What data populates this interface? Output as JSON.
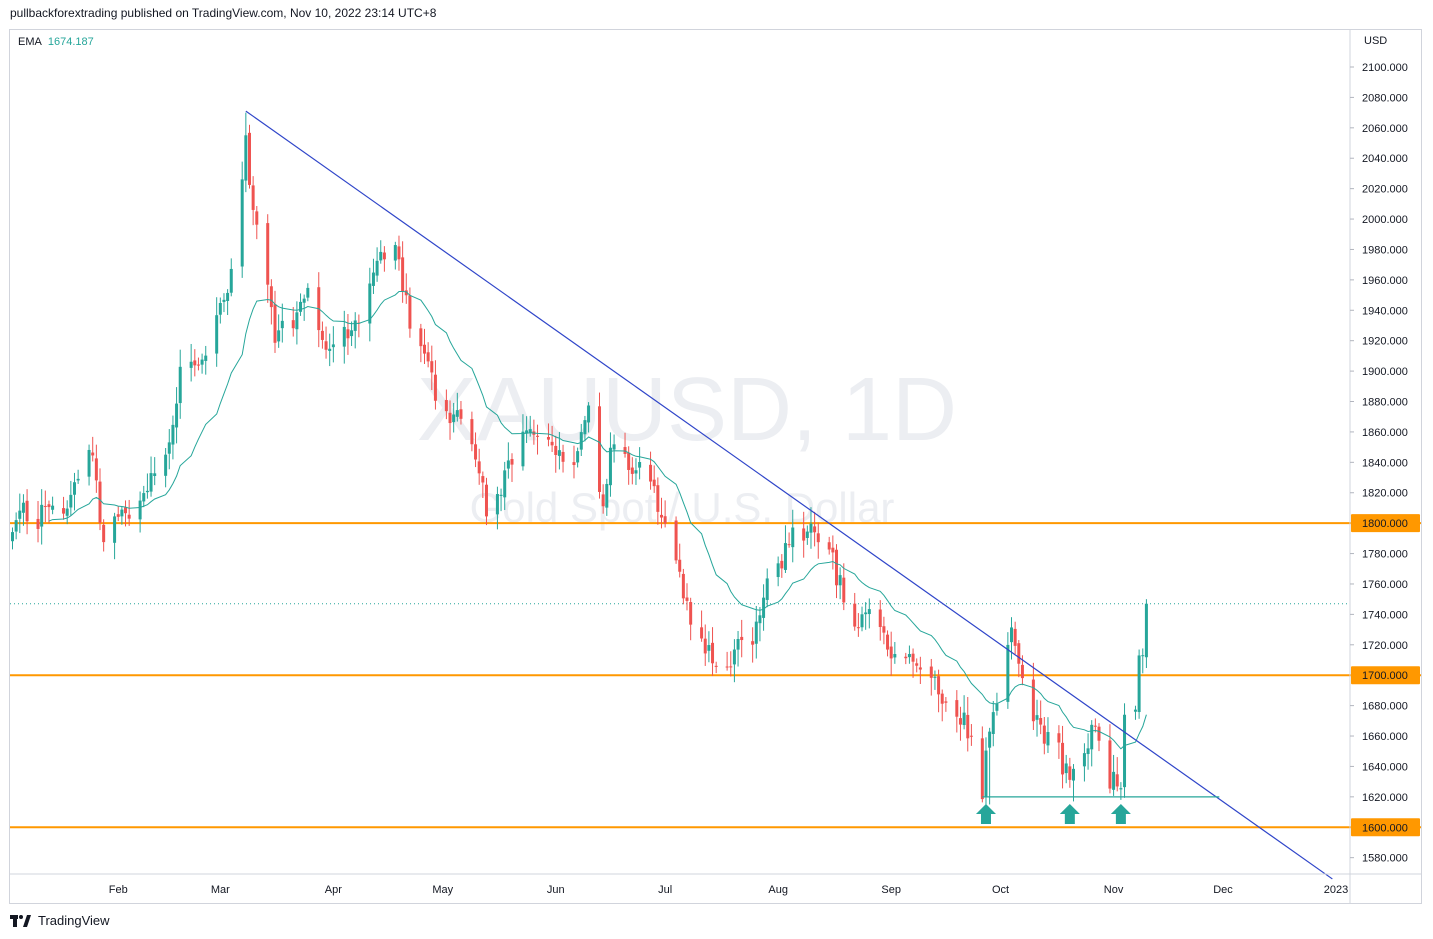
{
  "header": {
    "published": "pullbackforextrading published on TradingView.com, Nov 10, 2022 23:14 UTC+8"
  },
  "footer": {
    "brand": "TradingView"
  },
  "legend": {
    "ema_label": "EMA",
    "ema_value": "1674.187"
  },
  "colors": {
    "up": "#26a69a",
    "down": "#ef5350",
    "ema": "#26a69a",
    "trendline": "#2f45c9",
    "level": "#ff9800",
    "support": "#26a69a",
    "watermark": "#e6e8ec"
  },
  "chart_data": {
    "type": "candlestick",
    "title": "XAUUSD, 1D",
    "subtitle": "Gold Spot / U.S. Dollar",
    "currency": "USD",
    "ylim": [
      1570,
      2112
    ],
    "y_ticks": [
      1580,
      1600,
      1620,
      1640,
      1660,
      1680,
      1700,
      1720,
      1740,
      1760,
      1780,
      1800,
      1820,
      1840,
      1860,
      1880,
      1900,
      1920,
      1940,
      1960,
      1980,
      2000,
      2020,
      2040,
      2060,
      2080,
      2100
    ],
    "x_ticks": [
      "Feb",
      "Mar",
      "Apr",
      "May",
      "Jun",
      "Jul",
      "Aug",
      "Sep",
      "Oct",
      "Nov",
      "Dec",
      "2023"
    ],
    "levels": [
      {
        "value": 1800,
        "label": "1800.000"
      },
      {
        "value": 1700,
        "label": "1700.000"
      },
      {
        "value": 1600,
        "label": "1600.000"
      }
    ],
    "last_price": 1747,
    "anchors": [
      {
        "date": "2022-01-03",
        "close": 1800
      },
      {
        "date": "2022-01-05",
        "close": 1810
      },
      {
        "date": "2022-01-10",
        "close": 1800
      },
      {
        "date": "2022-01-14",
        "close": 1818
      },
      {
        "date": "2022-01-18",
        "close": 1812
      },
      {
        "date": "2022-01-25",
        "close": 1848
      },
      {
        "date": "2022-01-27",
        "close": 1795
      },
      {
        "date": "2022-01-31",
        "close": 1797
      },
      {
        "date": "2022-02-04",
        "close": 1808
      },
      {
        "date": "2022-02-10",
        "close": 1828
      },
      {
        "date": "2022-02-15",
        "close": 1855
      },
      {
        "date": "2022-02-18",
        "close": 1898
      },
      {
        "date": "2022-02-24",
        "close": 1905
      },
      {
        "date": "2022-03-01",
        "close": 1940
      },
      {
        "date": "2022-03-04",
        "close": 1968
      },
      {
        "date": "2022-03-08",
        "close": 2052
      },
      {
        "date": "2022-03-10",
        "close": 2000
      },
      {
        "date": "2022-03-14",
        "close": 1955
      },
      {
        "date": "2022-03-16",
        "close": 1925
      },
      {
        "date": "2022-03-21",
        "close": 1935
      },
      {
        "date": "2022-03-24",
        "close": 1955
      },
      {
        "date": "2022-03-29",
        "close": 1915
      },
      {
        "date": "2022-04-01",
        "close": 1925
      },
      {
        "date": "2022-04-06",
        "close": 1928
      },
      {
        "date": "2022-04-11",
        "close": 1955
      },
      {
        "date": "2022-04-14",
        "close": 1975
      },
      {
        "date": "2022-04-18",
        "close": 1980
      },
      {
        "date": "2022-04-20",
        "close": 1955
      },
      {
        "date": "2022-04-22",
        "close": 1930
      },
      {
        "date": "2022-04-26",
        "close": 1905
      },
      {
        "date": "2022-05-02",
        "close": 1868
      },
      {
        "date": "2022-05-05",
        "close": 1880
      },
      {
        "date": "2022-05-09",
        "close": 1855
      },
      {
        "date": "2022-05-13",
        "close": 1812
      },
      {
        "date": "2022-05-16",
        "close": 1818
      },
      {
        "date": "2022-05-20",
        "close": 1845
      },
      {
        "date": "2022-05-24",
        "close": 1865
      },
      {
        "date": "2022-05-31",
        "close": 1850
      },
      {
        "date": "2022-06-06",
        "close": 1845
      },
      {
        "date": "2022-06-10",
        "close": 1870
      },
      {
        "date": "2022-06-14",
        "close": 1812
      },
      {
        "date": "2022-06-16",
        "close": 1850
      },
      {
        "date": "2022-06-22",
        "close": 1840
      },
      {
        "date": "2022-06-28",
        "close": 1820
      },
      {
        "date": "2022-06-30",
        "close": 1808
      },
      {
        "date": "2022-07-05",
        "close": 1765
      },
      {
        "date": "2022-07-08",
        "close": 1740
      },
      {
        "date": "2022-07-14",
        "close": 1708
      },
      {
        "date": "2022-07-18",
        "close": 1710
      },
      {
        "date": "2022-07-21",
        "close": 1718
      },
      {
        "date": "2022-07-25",
        "close": 1720
      },
      {
        "date": "2022-07-28",
        "close": 1755
      },
      {
        "date": "2022-08-01",
        "close": 1772
      },
      {
        "date": "2022-08-04",
        "close": 1790
      },
      {
        "date": "2022-08-10",
        "close": 1793
      },
      {
        "date": "2022-08-15",
        "close": 1780
      },
      {
        "date": "2022-08-18",
        "close": 1760
      },
      {
        "date": "2022-08-22",
        "close": 1735
      },
      {
        "date": "2022-08-26",
        "close": 1738
      },
      {
        "date": "2022-08-30",
        "close": 1725
      },
      {
        "date": "2022-09-02",
        "close": 1712
      },
      {
        "date": "2022-09-07",
        "close": 1716
      },
      {
        "date": "2022-09-13",
        "close": 1700
      },
      {
        "date": "2022-09-16",
        "close": 1675
      },
      {
        "date": "2022-09-21",
        "close": 1672
      },
      {
        "date": "2022-09-26",
        "close": 1625
      },
      {
        "date": "2022-09-28",
        "close": 1660
      },
      {
        "date": "2022-10-04",
        "close": 1725
      },
      {
        "date": "2022-10-07",
        "close": 1695
      },
      {
        "date": "2022-10-12",
        "close": 1665
      },
      {
        "date": "2022-10-17",
        "close": 1650
      },
      {
        "date": "2022-10-20",
        "close": 1628
      },
      {
        "date": "2022-10-24",
        "close": 1655
      },
      {
        "date": "2022-10-27",
        "close": 1665
      },
      {
        "date": "2022-10-31",
        "close": 1632
      },
      {
        "date": "2022-11-03",
        "close": 1630
      },
      {
        "date": "2022-11-04",
        "close": 1680
      },
      {
        "date": "2022-11-07",
        "close": 1676
      },
      {
        "date": "2022-11-08",
        "close": 1715
      },
      {
        "date": "2022-11-09",
        "close": 1707
      },
      {
        "date": "2022-11-10",
        "close": 1747
      }
    ],
    "trendline": [
      {
        "date": "2022-03-08",
        "price": 2071
      },
      {
        "date": "2022-12-31",
        "price": 1566
      }
    ],
    "support_line": {
      "price": 1620,
      "from": "2022-09-26",
      "to": "2022-11-30"
    },
    "markers": [
      {
        "date": "2022-09-27",
        "type": "up-arrow"
      },
      {
        "date": "2022-10-20",
        "type": "up-arrow"
      },
      {
        "date": "2022-11-03",
        "type": "up-arrow"
      }
    ],
    "ema_period": 20
  }
}
